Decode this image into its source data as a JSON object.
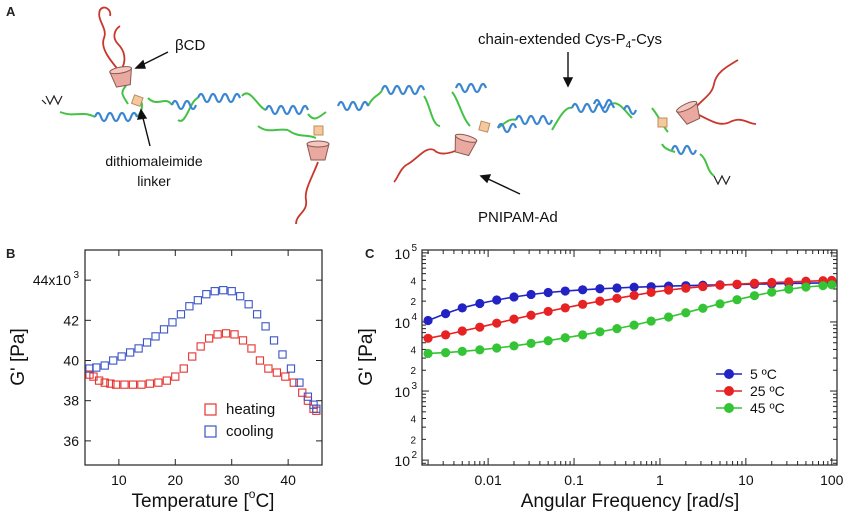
{
  "panel_a": {
    "panel_label": "A",
    "labels": {
      "beta_cd": "βCD",
      "chain_extended_prefix": "chain-extended Cys-P",
      "chain_extended_sub": "4",
      "chain_extended_suffix": "-Cys",
      "linker_line1": "dithiomaleimide",
      "linker_line2": "linker",
      "pnipam": "PNIPAM-Ad"
    },
    "colors": {
      "helix": "#3a86d0",
      "linker_chain": "#44c244",
      "pnipam": "#c9372c",
      "cyclodextrin": "#e9a8a0",
      "node": "#f3c9a0"
    }
  },
  "chart_data": [
    {
      "panel_label": "B",
      "type": "scatter",
      "xlabel": "Temperature [",
      "xlabel_sup": "o",
      "xlabel_end": "C]",
      "ylabel": "G' [Pa]",
      "xlim": [
        4,
        46
      ],
      "ylim": [
        34.8,
        45.5
      ],
      "xticks": [
        10,
        20,
        30,
        40
      ],
      "yticks": [
        36,
        38,
        40,
        42,
        44
      ],
      "ytick_labels": [
        "36",
        "38",
        "40",
        "42",
        "44x10"
      ],
      "ytick_exp": "3",
      "legend": "bottom-right",
      "series": [
        {
          "name": "heating",
          "color": "#e5342f",
          "marker": "open-square",
          "points": [
            [
              4.8,
              39.3
            ],
            [
              5.5,
              39.2
            ],
            [
              6.5,
              39.0
            ],
            [
              7.5,
              38.9
            ],
            [
              8.5,
              38.85
            ],
            [
              9.5,
              38.8
            ],
            [
              11,
              38.8
            ],
            [
              12.5,
              38.8
            ],
            [
              14,
              38.8
            ],
            [
              15.5,
              38.85
            ],
            [
              17,
              38.9
            ],
            [
              18.5,
              39.0
            ],
            [
              20,
              39.2
            ],
            [
              21.5,
              39.6
            ],
            [
              23,
              40.2
            ],
            [
              24.5,
              40.7
            ],
            [
              26,
              41.1
            ],
            [
              27.5,
              41.3
            ],
            [
              29,
              41.35
            ],
            [
              30.5,
              41.3
            ],
            [
              32,
              41.0
            ],
            [
              33.5,
              40.6
            ],
            [
              35,
              40.0
            ],
            [
              36.5,
              39.6
            ],
            [
              38,
              39.4
            ],
            [
              39.5,
              39.2
            ],
            [
              41,
              38.9
            ],
            [
              42.5,
              38.4
            ],
            [
              43.5,
              38.0
            ],
            [
              44.5,
              37.6
            ],
            [
              45,
              37.5
            ]
          ]
        },
        {
          "name": "cooling",
          "color": "#3a55c6",
          "marker": "open-square",
          "points": [
            [
              4.8,
              39.6
            ],
            [
              6,
              39.65
            ],
            [
              7.5,
              39.75
            ],
            [
              9,
              40.0
            ],
            [
              10.5,
              40.2
            ],
            [
              12,
              40.4
            ],
            [
              13.5,
              40.6
            ],
            [
              15,
              40.9
            ],
            [
              16.5,
              41.2
            ],
            [
              18,
              41.55
            ],
            [
              19.5,
              41.9
            ],
            [
              21,
              42.3
            ],
            [
              22.5,
              42.7
            ],
            [
              24,
              43.0
            ],
            [
              25.5,
              43.3
            ],
            [
              27,
              43.45
            ],
            [
              28.5,
              43.5
            ],
            [
              30,
              43.45
            ],
            [
              31.5,
              43.2
            ],
            [
              33,
              42.8
            ],
            [
              34.5,
              42.3
            ],
            [
              36,
              41.7
            ],
            [
              37.5,
              41.0
            ],
            [
              39,
              40.3
            ],
            [
              40.5,
              39.6
            ],
            [
              42,
              38.9
            ],
            [
              43.5,
              38.2
            ],
            [
              44.5,
              37.8
            ],
            [
              45,
              37.6
            ]
          ]
        }
      ]
    },
    {
      "panel_label": "C",
      "type": "line",
      "xscale": "log",
      "yscale": "log",
      "xlabel": "Angular Frequency [rad/s]",
      "ylabel": "G' [Pa]",
      "xlim": [
        0.0017,
        115
      ],
      "ylim": [
        85,
        110000
      ],
      "xtick_labels": [
        "0.01",
        "0.1",
        "1",
        "10",
        "100"
      ],
      "xtick_values": [
        0.01,
        0.1,
        1,
        10,
        100
      ],
      "y_decades": [
        2,
        3,
        4,
        5
      ],
      "y_minor_labels": [
        "2",
        "4"
      ],
      "legend": "bottom-right",
      "series": [
        {
          "name": "5 ºC",
          "color": "#2323c4",
          "x": [
            0.002,
            0.0032,
            0.005,
            0.008,
            0.0126,
            0.02,
            0.0316,
            0.05,
            0.079,
            0.126,
            0.2,
            0.316,
            0.5,
            0.79,
            1.26,
            2.0,
            3.16,
            5.0,
            7.9,
            12.6,
            20,
            31.6,
            50,
            79,
            100
          ],
          "y": [
            10500,
            13200,
            16000,
            18500,
            20800,
            23000,
            25000,
            26700,
            28000,
            29200,
            30200,
            31000,
            31800,
            32400,
            33000,
            33500,
            34000,
            34400,
            34800,
            35200,
            35600,
            36000,
            36400,
            36800,
            37000
          ]
        },
        {
          "name": "25 ºC",
          "color": "#e62222",
          "x": [
            0.002,
            0.0032,
            0.005,
            0.008,
            0.0126,
            0.02,
            0.0316,
            0.05,
            0.079,
            0.126,
            0.2,
            0.316,
            0.5,
            0.79,
            1.26,
            2.0,
            3.16,
            5.0,
            7.9,
            12.6,
            20,
            31.6,
            50,
            79,
            100
          ],
          "y": [
            5800,
            6500,
            7400,
            8400,
            9600,
            11000,
            12500,
            14200,
            16000,
            18000,
            20000,
            22000,
            24200,
            26800,
            29000,
            30800,
            32500,
            34000,
            35200,
            36300,
            37200,
            38000,
            38800,
            39500,
            40000
          ]
        },
        {
          "name": "45 ºC",
          "color": "#35c435",
          "x": [
            0.002,
            0.0032,
            0.005,
            0.008,
            0.0126,
            0.02,
            0.0316,
            0.05,
            0.079,
            0.126,
            0.2,
            0.316,
            0.5,
            0.79,
            1.26,
            2.0,
            3.16,
            5.0,
            7.9,
            12.6,
            20,
            31.6,
            50,
            79,
            100
          ],
          "y": [
            3500,
            3600,
            3750,
            3950,
            4200,
            4500,
            4900,
            5350,
            5900,
            6500,
            7200,
            8000,
            9000,
            10300,
            11800,
            13600,
            15800,
            18300,
            21000,
            24000,
            27000,
            29800,
            32000,
            33500,
            34500
          ]
        }
      ]
    }
  ]
}
